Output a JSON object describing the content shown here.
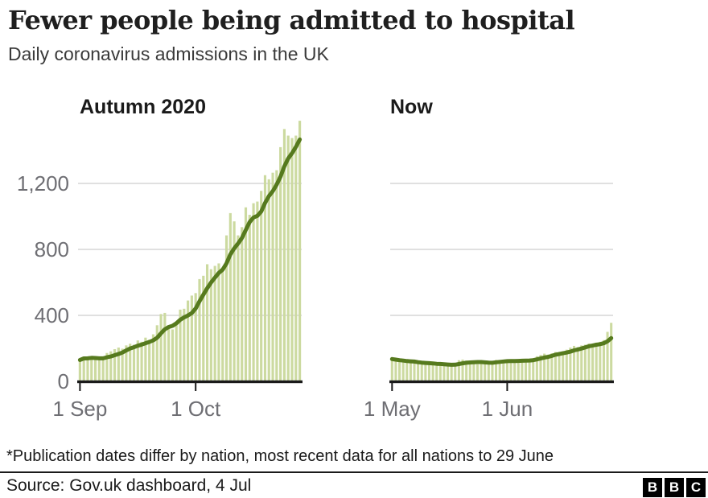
{
  "page": {
    "title": "Fewer people being admitted to hospital",
    "subtitle": "Daily coronavirus admissions in the UK",
    "footnote": "*Publication dates differ by nation, most recent data for all nations to 29 June",
    "source": "Source: Gov.uk dashboard, 4 Jul",
    "logo_letters": [
      "B",
      "B",
      "C"
    ]
  },
  "colors": {
    "bar": "#ccdaa0",
    "line": "#567a1e",
    "grid": "#d5d5d5",
    "axis": "#1a1a1a",
    "tick_label": "#6e6e73"
  },
  "chart_data": [
    {
      "type": "bar",
      "title": "Autumn 2020",
      "overlay_line": "7-day rolling average",
      "x_tick_labels": [
        "1 Sep",
        "1 Oct"
      ],
      "x_tick_indices": [
        0,
        30
      ],
      "y_tick_values": [
        0,
        400,
        800,
        1200
      ],
      "y_tick_labels": [
        "0",
        "400",
        "800",
        "1,200"
      ],
      "ylim": [
        0,
        1600
      ],
      "grid": true,
      "values": [
        130,
        148,
        140,
        152,
        138,
        128,
        142,
        172,
        182,
        195,
        205,
        198,
        218,
        228,
        222,
        248,
        240,
        265,
        252,
        285,
        340,
        408,
        415,
        340,
        315,
        360,
        435,
        440,
        490,
        520,
        535,
        620,
        640,
        710,
        680,
        700,
        715,
        675,
        885,
        1020,
        970,
        885,
        935,
        1055,
        1010,
        1080,
        1090,
        1155,
        1250,
        1225,
        1265,
        1280,
        1420,
        1530,
        1490,
        1475,
        1490,
        1580
      ]
    },
    {
      "type": "bar",
      "title": "Now",
      "overlay_line": "7-day rolling average",
      "x_tick_labels": [
        "1 May",
        "1 Jun"
      ],
      "x_tick_indices": [
        0,
        31
      ],
      "y_tick_values": [
        0,
        400,
        800,
        1200
      ],
      "ylim": [
        0,
        1600
      ],
      "grid": true,
      "values": [
        135,
        128,
        122,
        118,
        112,
        115,
        110,
        108,
        112,
        108,
        105,
        102,
        100,
        104,
        98,
        96,
        100,
        108,
        128,
        132,
        126,
        112,
        108,
        104,
        110,
        114,
        118,
        124,
        130,
        126,
        120,
        125,
        118,
        122,
        128,
        135,
        130,
        126,
        140,
        152,
        160,
        168,
        162,
        170,
        178,
        172,
        182,
        192,
        205,
        215,
        208,
        218,
        222,
        230,
        225,
        235,
        240,
        250,
        300,
        355
      ]
    }
  ]
}
